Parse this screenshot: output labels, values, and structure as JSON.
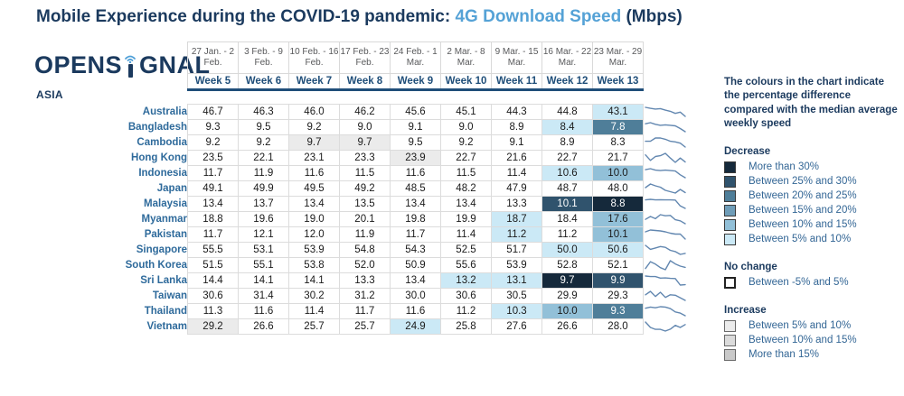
{
  "title": {
    "prefix": "Mobile Experience during the COVID-19 pandemic: ",
    "highlight": "4G Download Speed",
    "suffix": " (Mbps)"
  },
  "logo": {
    "text_left": "OPENS",
    "text_right": "GNAL",
    "region": "ASIA"
  },
  "colors": {
    "navy": "#1B3A5E",
    "week_navy": "#1F4E79",
    "title_highlight": "#55A2D6",
    "country_blue": "#2E6A9B",
    "date_gray": "#58595B",
    "grid_border": "#D9D9D9",
    "sparkline": "#6287B0",
    "buckets": {
      "dec_gt30": {
        "bg": "#15293B",
        "text": "#FFFFFF"
      },
      "dec_25_30": {
        "bg": "#30536D",
        "text": "#FFFFFF"
      },
      "dec_20_25": {
        "bg": "#4F7E99",
        "text": "#FFFFFF"
      },
      "dec_15_20": {
        "bg": "#6F9DB8",
        "text": "#1A1A1A"
      },
      "dec_10_15": {
        "bg": "#92C0D8",
        "text": "#1A1A1A"
      },
      "dec_5_10": {
        "bg": "#CBE9F6",
        "text": "#1A1A1A"
      },
      "no_change": {
        "bg": "#FFFFFF",
        "text": "#1A1A1A"
      },
      "inc_5_10": {
        "bg": "#EBEBEB",
        "text": "#1A1A1A"
      },
      "inc_10_15": {
        "bg": "#DBDBDB",
        "text": "#1A1A1A"
      },
      "inc_gt15": {
        "bg": "#C9C9C9",
        "text": "#1A1A1A"
      }
    }
  },
  "chart_data": {
    "type": "heatmap",
    "title": "Mobile Experience during the COVID-19 pandemic: 4G Download Speed (Mbps)",
    "region": "ASIA",
    "date_ranges": [
      "27 Jan. - 2 Feb.",
      "3 Feb. - 9 Feb.",
      "10 Feb. - 16 Feb.",
      "17 Feb. - 23 Feb.",
      "24 Feb. - 1 Mar.",
      "2 Mar. - 8 Mar.",
      "9 Mar. - 15 Mar.",
      "16 Mar. - 22 Mar.",
      "23 Mar. - 29 Mar."
    ],
    "columns": [
      "Week 5",
      "Week 6",
      "Week 7",
      "Week 8",
      "Week 9",
      "Week 10",
      "Week 11",
      "Week 12",
      "Week 13"
    ],
    "rows": [
      {
        "country": "Australia",
        "values": [
          "46.7",
          "46.3",
          "46.0",
          "46.2",
          "45.6",
          "45.1",
          "44.3",
          "44.8",
          "43.1"
        ],
        "buckets": [
          null,
          null,
          null,
          null,
          null,
          null,
          null,
          null,
          "dec_5_10"
        ]
      },
      {
        "country": "Bangladesh",
        "values": [
          "9.3",
          "9.5",
          "9.2",
          "9.0",
          "9.1",
          "9.0",
          "8.9",
          "8.4",
          "7.8"
        ],
        "buckets": [
          null,
          null,
          null,
          null,
          null,
          null,
          null,
          "dec_5_10",
          "dec_20_25"
        ]
      },
      {
        "country": "Cambodia",
        "values": [
          "9.2",
          "9.2",
          "9.7",
          "9.7",
          "9.5",
          "9.2",
          "9.1",
          "8.9",
          "8.3"
        ],
        "buckets": [
          null,
          null,
          "inc_5_10",
          "inc_5_10",
          null,
          null,
          null,
          null,
          null
        ]
      },
      {
        "country": "Hong Kong",
        "values": [
          "23.5",
          "22.1",
          "23.1",
          "23.3",
          "23.9",
          "22.7",
          "21.6",
          "22.7",
          "21.7"
        ],
        "buckets": [
          null,
          null,
          null,
          null,
          "inc_5_10",
          null,
          null,
          null,
          null
        ]
      },
      {
        "country": "Indonesia",
        "values": [
          "11.7",
          "11.9",
          "11.6",
          "11.5",
          "11.6",
          "11.5",
          "11.4",
          "10.6",
          "10.0"
        ],
        "buckets": [
          null,
          null,
          null,
          null,
          null,
          null,
          null,
          "dec_5_10",
          "dec_10_15"
        ]
      },
      {
        "country": "Japan",
        "values": [
          "49.1",
          "49.9",
          "49.5",
          "49.2",
          "48.5",
          "48.2",
          "47.9",
          "48.7",
          "48.0"
        ],
        "buckets": [
          null,
          null,
          null,
          null,
          null,
          null,
          null,
          null,
          null
        ]
      },
      {
        "country": "Malaysia",
        "values": [
          "13.4",
          "13.7",
          "13.4",
          "13.5",
          "13.4",
          "13.4",
          "13.3",
          "10.1",
          "8.8"
        ],
        "buckets": [
          null,
          null,
          null,
          null,
          null,
          null,
          null,
          "dec_25_30",
          "dec_gt30"
        ]
      },
      {
        "country": "Myanmar",
        "values": [
          "18.8",
          "19.6",
          "19.0",
          "20.1",
          "19.8",
          "19.9",
          "18.7",
          "18.4",
          "17.6"
        ],
        "buckets": [
          null,
          null,
          null,
          null,
          null,
          null,
          "dec_5_10",
          null,
          "dec_10_15"
        ]
      },
      {
        "country": "Pakistan",
        "values": [
          "11.7",
          "12.1",
          "12.0",
          "11.9",
          "11.7",
          "11.4",
          "11.2",
          "11.2",
          "10.1"
        ],
        "buckets": [
          null,
          null,
          null,
          null,
          null,
          null,
          "dec_5_10",
          null,
          "dec_10_15"
        ]
      },
      {
        "country": "Singapore",
        "values": [
          "55.5",
          "53.1",
          "53.9",
          "54.8",
          "54.3",
          "52.5",
          "51.7",
          "50.0",
          "50.6"
        ],
        "buckets": [
          null,
          null,
          null,
          null,
          null,
          null,
          null,
          "dec_5_10",
          "dec_5_10"
        ]
      },
      {
        "country": "South Korea",
        "values": [
          "51.5",
          "55.1",
          "53.8",
          "52.0",
          "50.9",
          "55.6",
          "53.9",
          "52.8",
          "52.1"
        ],
        "buckets": [
          null,
          null,
          null,
          null,
          null,
          null,
          null,
          null,
          null
        ]
      },
      {
        "country": "Sri Lanka",
        "values": [
          "14.4",
          "14.1",
          "14.1",
          "13.3",
          "13.4",
          "13.2",
          "13.1",
          "9.7",
          "9.9"
        ],
        "buckets": [
          null,
          null,
          null,
          null,
          null,
          "dec_5_10",
          "dec_5_10",
          "dec_gt30",
          "dec_25_30"
        ]
      },
      {
        "country": "Taiwan",
        "values": [
          "30.6",
          "31.4",
          "30.2",
          "31.2",
          "30.0",
          "30.6",
          "30.5",
          "29.9",
          "29.3"
        ],
        "buckets": [
          null,
          null,
          null,
          null,
          null,
          null,
          null,
          null,
          null
        ]
      },
      {
        "country": "Thailand",
        "values": [
          "11.3",
          "11.6",
          "11.4",
          "11.7",
          "11.6",
          "11.2",
          "10.3",
          "10.0",
          "9.3"
        ],
        "buckets": [
          null,
          null,
          null,
          null,
          null,
          null,
          "dec_5_10",
          "dec_10_15",
          "dec_20_25"
        ]
      },
      {
        "country": "Vietnam",
        "values": [
          "29.2",
          "26.6",
          "25.7",
          "25.7",
          "24.9",
          "25.8",
          "27.6",
          "26.6",
          "28.0"
        ],
        "buckets": [
          "inc_5_10",
          null,
          null,
          null,
          "dec_5_10",
          null,
          null,
          null,
          null
        ]
      }
    ]
  },
  "legend": {
    "description": "The colours in the chart indicate the percentage difference compared with the median average weekly speed",
    "groups": [
      {
        "heading": "Decrease",
        "items": [
          {
            "bucket": "dec_gt30",
            "label": "More than 30%"
          },
          {
            "bucket": "dec_25_30",
            "label": "Between 25% and 30%"
          },
          {
            "bucket": "dec_20_25",
            "label": "Between 20% and 25%"
          },
          {
            "bucket": "dec_15_20",
            "label": "Between 15% and 20%"
          },
          {
            "bucket": "dec_10_15",
            "label": "Between 10% and 15%"
          },
          {
            "bucket": "dec_5_10",
            "label": "Between 5% and 10%"
          }
        ]
      },
      {
        "heading": "No change",
        "items": [
          {
            "bucket": "no_change",
            "label": "Between -5% and 5%"
          }
        ]
      },
      {
        "heading": "Increase",
        "items": [
          {
            "bucket": "inc_5_10",
            "label": "Between 5% and 10%"
          },
          {
            "bucket": "inc_10_15",
            "label": "Between 10% and 15%"
          },
          {
            "bucket": "inc_gt15",
            "label": "More than 15%"
          }
        ]
      }
    ]
  }
}
